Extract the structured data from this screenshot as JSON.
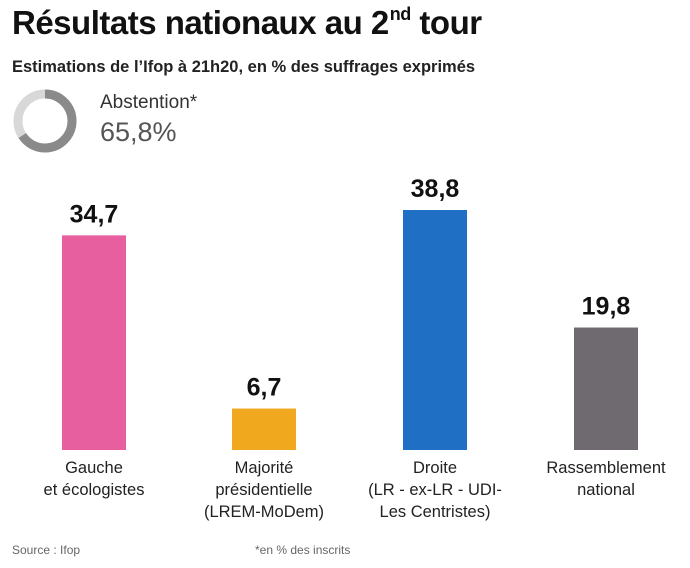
{
  "header": {
    "title_main": "Résultats nationaux au 2",
    "title_sup": "nd",
    "title_end": " tour",
    "subtitle": "Estimations de l’Ifop à 21h20, en % des suffrages exprimés"
  },
  "abstention": {
    "label": "Abstention*",
    "value_text": "65,8%",
    "value": 65.8,
    "ring_color": "#8a8a8a",
    "track_color": "#d8d8d8"
  },
  "chart_data": {
    "type": "bar",
    "ylim": [
      0,
      38.8
    ],
    "grid": false,
    "legend": "none",
    "categories": [
      [
        "Gauche",
        "et écologistes"
      ],
      [
        "Majorité",
        "présidentielle",
        "(LREM-MoDem)"
      ],
      [
        "Droite",
        "(LR - ex-LR - UDI-",
        "Les Centristes)"
      ],
      [
        "Rassemblement",
        "national"
      ]
    ],
    "values": [
      34.7,
      6.7,
      38.8,
      19.8
    ],
    "value_labels": [
      "34,7",
      "6,7",
      "38,8",
      "19,8"
    ],
    "colors": [
      "#e85fa0",
      "#f0a81e",
      "#1f6fc5",
      "#6e6a6f"
    ]
  },
  "footer": {
    "source": "Source : Ifop",
    "note": "*en % des inscrits"
  }
}
